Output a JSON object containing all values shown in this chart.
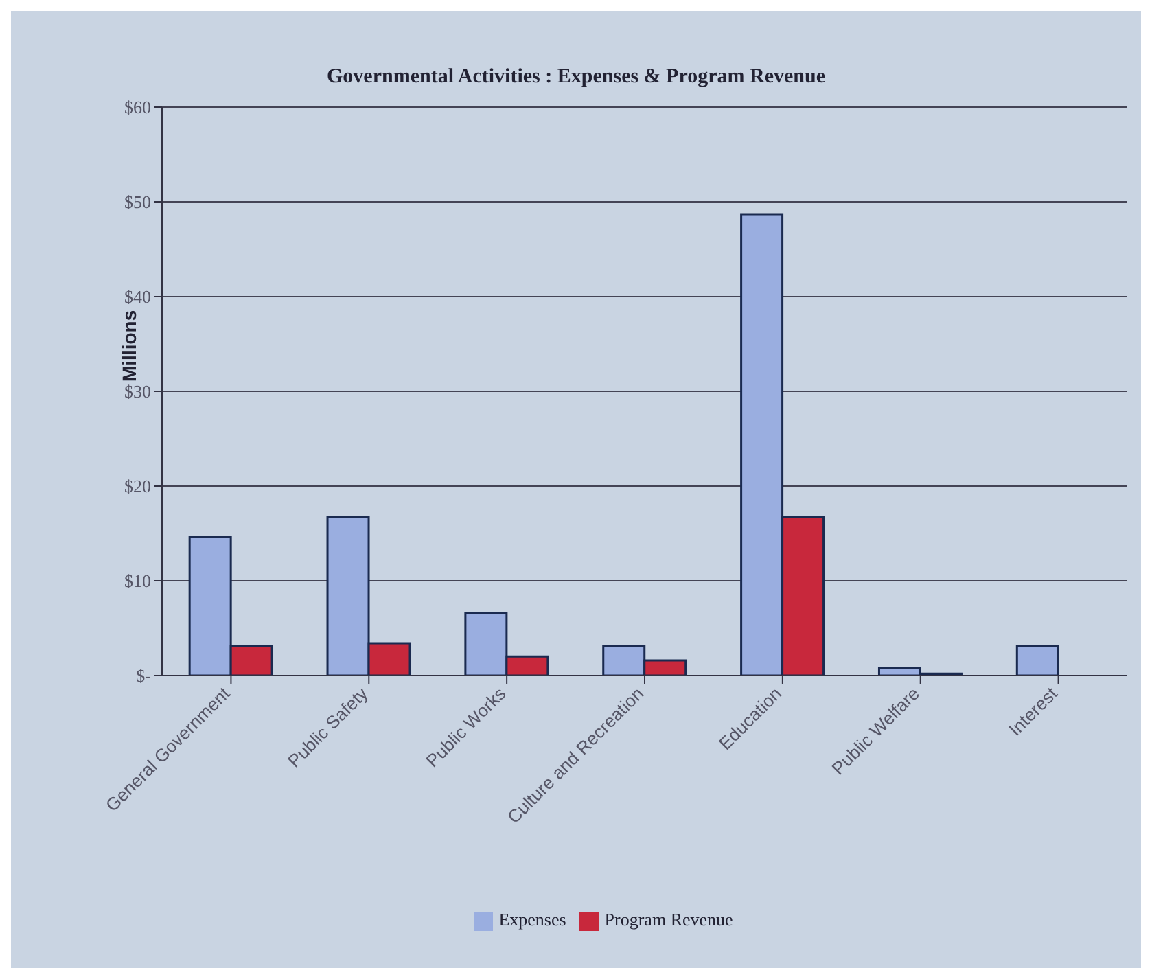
{
  "chart_data": {
    "type": "bar",
    "title": "Governmental Activities : Expenses & Program Revenue",
    "ylabel": "Millions",
    "categories": [
      "General Government",
      "Public Safety",
      "Public Works",
      "Culture and Recreation",
      "Education",
      "Public Welfare",
      "Interest"
    ],
    "series": [
      {
        "name": "Expenses",
        "color": "#9aaee0",
        "values": [
          14.6,
          16.7,
          6.6,
          3.1,
          48.7,
          0.8,
          3.1
        ]
      },
      {
        "name": "Program Revenue",
        "color": "#c8283c",
        "values": [
          3.1,
          3.4,
          2.0,
          1.6,
          16.7,
          0.2,
          0
        ]
      }
    ],
    "ylim": [
      0,
      60
    ],
    "yticks": [
      {
        "value": 0,
        "label": "$-"
      },
      {
        "value": 10,
        "label": "$10"
      },
      {
        "value": 20,
        "label": "$20"
      },
      {
        "value": 30,
        "label": "$30"
      },
      {
        "value": 40,
        "label": "$40"
      },
      {
        "value": 50,
        "label": "$50"
      },
      {
        "value": 60,
        "label": "$60"
      }
    ],
    "grid": "y",
    "legend": "bottom"
  }
}
